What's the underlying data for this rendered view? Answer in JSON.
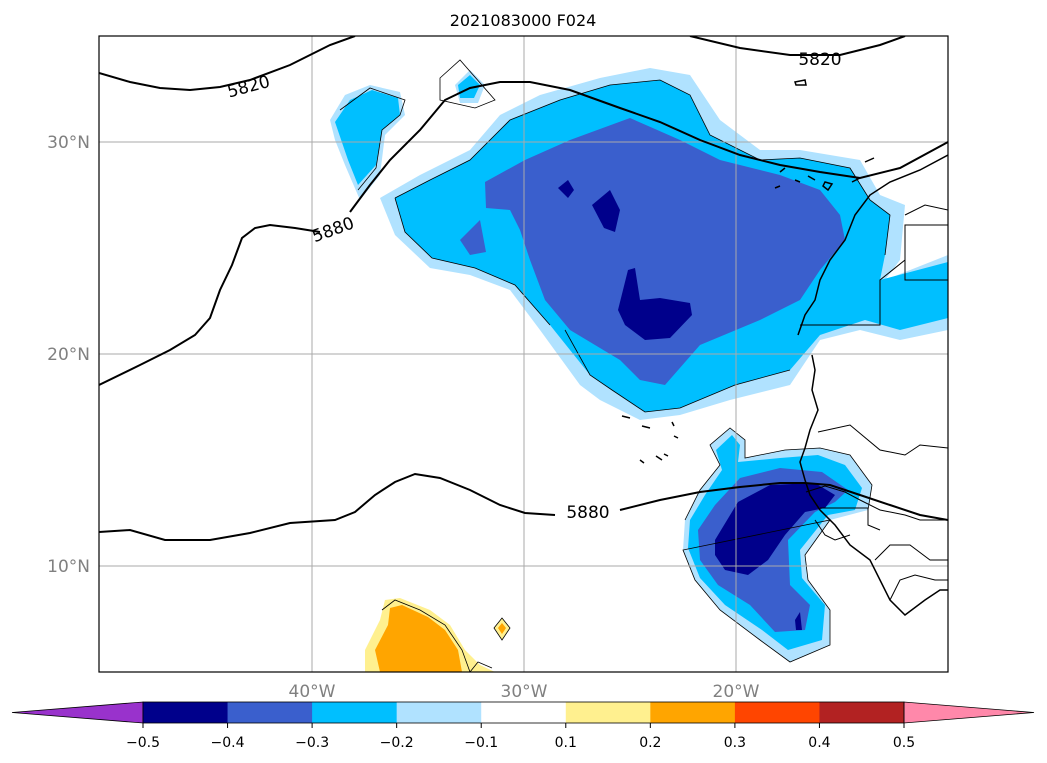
{
  "title": "2021083000 F024",
  "map": {
    "longitude_labels": [
      "40°W",
      "30°W",
      "20°W"
    ],
    "latitude_labels": [
      "30°N",
      "20°N",
      "10°N"
    ],
    "contour_labels": [
      "5820",
      "5820",
      "5880",
      "5880"
    ]
  },
  "colorbar": {
    "tick_labels": [
      "−0.5",
      "−0.4",
      "−0.3",
      "−0.2",
      "−0.1",
      "0.1",
      "0.2",
      "0.3",
      "0.4",
      "0.5"
    ],
    "colors": [
      "#9932cc",
      "#00008b",
      "#3a5fcd",
      "#00bfff",
      "#b0e2ff",
      "#ffffff",
      "#fff08f",
      "#ffa500",
      "#ff4500",
      "#b22222",
      "#ff88aa"
    ]
  },
  "colors": {
    "very_light_blue": "#b0e2ff",
    "deep_sky_blue": "#00bfff",
    "royal_blue": "#3a5fcd",
    "navy": "#00008b",
    "light_yellow": "#fff08f",
    "orange": "#ffa500"
  }
}
